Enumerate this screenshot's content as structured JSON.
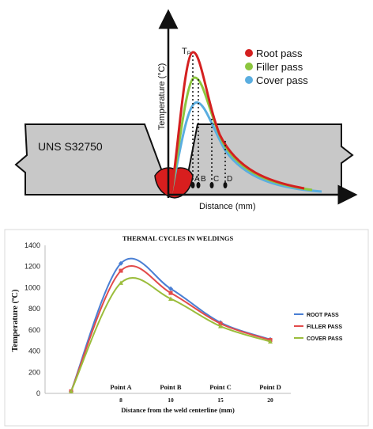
{
  "colors": {
    "root": "#4a7fd4",
    "filler": "#e24b4b",
    "cover": "#9bbd3c",
    "root_top": "#d42020",
    "filler_top": "#8cc63f",
    "cover_top": "#5aaee0"
  },
  "schematic": {
    "material_label": "UNS S32750",
    "yaxis_label": "Temperature (°C)",
    "xaxis_label": "Distance (mm)",
    "peak_label": "Tₚ",
    "point_labels": [
      "A",
      "B",
      "C",
      "D"
    ],
    "legend": [
      "Root pass",
      "Filler pass",
      "Cover pass"
    ]
  },
  "chart_data": {
    "type": "line",
    "title": "THERMAL CYCLES IN WELDINGS",
    "xlabel": "Distance from the weld centerline (mm)",
    "ylabel": "Temperature (ºC)",
    "ylim": [
      0,
      1400
    ],
    "yticks": [
      "0",
      "200",
      "400",
      "600",
      "800",
      "1000",
      "1200",
      "1400"
    ],
    "x_ticks": [
      "8",
      "10",
      "15",
      "20"
    ],
    "point_labels": [
      "Point A",
      "Point B",
      "Point C",
      "Point D"
    ],
    "series": [
      {
        "name": "ROOT PASS",
        "values": [
          20,
          1230,
          990,
          670,
          510
        ]
      },
      {
        "name": "FILLER PASS",
        "values": [
          20,
          1160,
          950,
          660,
          505
        ]
      },
      {
        "name": "COVER PASS",
        "values": [
          20,
          1045,
          895,
          635,
          490
        ]
      }
    ],
    "legend_position": "right"
  }
}
